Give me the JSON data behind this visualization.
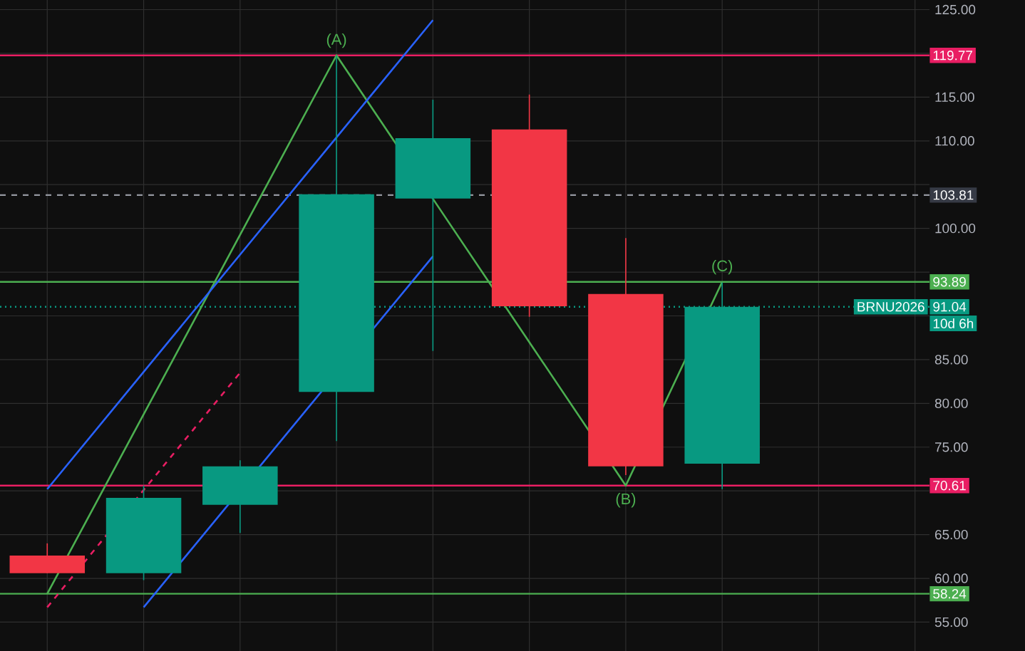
{
  "chart_data": {
    "type": "candlestick",
    "categories": [
      null,
      null,
      null,
      null,
      null,
      null,
      null,
      null
    ],
    "ohlc": [
      [
        62.6,
        64.0,
        60.6,
        60.6
      ],
      [
        60.6,
        70.6,
        59.8,
        69.2
      ],
      [
        68.4,
        73.5,
        65.2,
        72.8
      ],
      [
        81.3,
        119.7,
        75.7,
        103.9
      ],
      [
        103.4,
        114.7,
        86.0,
        110.3
      ],
      [
        111.3,
        115.3,
        89.9,
        91.1
      ],
      [
        92.5,
        98.9,
        71.8,
        72.8
      ],
      [
        73.1,
        93.8,
        70.2,
        91.04
      ]
    ],
    "colors": [
      "#f23645",
      "#089981",
      "#089981",
      "#089981",
      "#089981",
      "#f23645",
      "#f23645",
      "#089981"
    ],
    "series": [
      {
        "type": "line",
        "color": "#4caf50",
        "values": [
          58.24,
          78.75,
          99.26,
          119.77,
          103.38,
          86.99,
          70.61,
          93.89
        ]
      },
      {
        "type": "line",
        "color": "#2962ff",
        "values": [
          70.2,
          83.6,
          97.0,
          110.4,
          123.8,
          null,
          null,
          null
        ]
      },
      {
        "type": "line",
        "color": "#2962ff",
        "values": [
          null,
          56.7,
          null,
          null,
          96.8,
          null,
          null,
          null
        ]
      },
      {
        "type": "line",
        "color": "#e91e63",
        "line_style": "dashed",
        "values": [
          56.7,
          70.1,
          83.5,
          null,
          null,
          null,
          null,
          null
        ]
      }
    ],
    "ylim": [
      51.7,
      126.1
    ],
    "yticks": [
      {
        "value": 55,
        "label": "55.00"
      },
      {
        "value": 60,
        "label": "60.00"
      },
      {
        "value": 65,
        "label": "65.00"
      },
      {
        "value": 70,
        "label": null
      },
      {
        "value": 75,
        "label": "75.00"
      },
      {
        "value": 80,
        "label": "80.00"
      },
      {
        "value": 85,
        "label": "85.00"
      },
      {
        "value": 90,
        "label": null
      },
      {
        "value": 95,
        "label": null
      },
      {
        "value": 100,
        "label": "100.00"
      },
      {
        "value": 105,
        "label": null
      },
      {
        "value": 110,
        "label": "110.00"
      },
      {
        "value": 115,
        "label": "115.00"
      },
      {
        "value": 120,
        "label": null
      },
      {
        "value": 125,
        "label": "125.00"
      }
    ],
    "grid": true,
    "ref_lines": [
      {
        "axis": "y",
        "value": 119.77,
        "label": "119.77",
        "color": "#e91e63"
      },
      {
        "axis": "y",
        "value": 103.81,
        "label": "103.81",
        "color": "#9598a1",
        "line_style": "dashed"
      },
      {
        "axis": "y",
        "value": 93.89,
        "label": "93.89",
        "color": "#4caf50"
      },
      {
        "axis": "y",
        "value": 91.04,
        "label": "91.04",
        "color": "#089981",
        "line_style": "dotted"
      },
      {
        "axis": "y",
        "value": 70.61,
        "label": "70.61",
        "color": "#e91e63"
      },
      {
        "axis": "y",
        "value": 58.24,
        "label": "58.24",
        "color": "#4caf50"
      }
    ],
    "annotations": [
      {
        "text": "(A)",
        "y": 119.77
      },
      {
        "text": "(B)",
        "y": 70.61
      },
      {
        "text": "(C)",
        "y": 93.89
      },
      {
        "text": "BRNU2026",
        "y": 91.04
      },
      "10d 6h"
    ]
  }
}
